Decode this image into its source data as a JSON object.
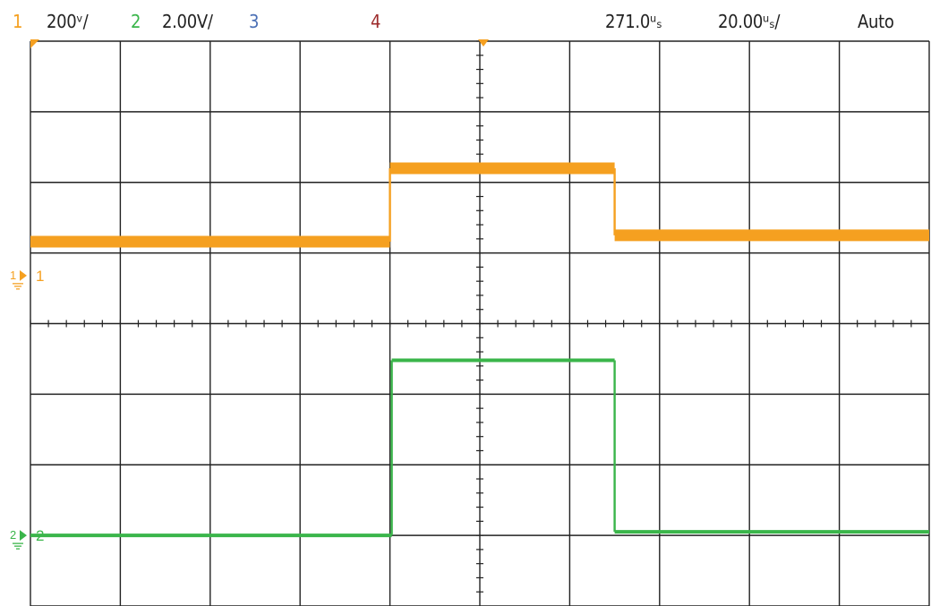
{
  "status_bar": {
    "ch1_num": "1",
    "ch1_scale": "200ᵛ/",
    "ch2_num": "2",
    "ch2_scale": "2.00V/",
    "ch3_num": "3",
    "ch4_num": "4",
    "time_offset": "271.0ᵘₛ",
    "time_div": "20.00ᵘₛ/",
    "trigger_mode": "Auto"
  },
  "colors": {
    "ch1": "#f5a020",
    "ch2": "#3ab54a",
    "ch3": "#4a6fb5",
    "ch4": "#9c2a2a",
    "grid": "#222222",
    "text": "#222222"
  },
  "chart_data": {
    "type": "line",
    "grid": true,
    "x_divisions": 10,
    "y_divisions": 8,
    "xlabel": "",
    "ylabel": "",
    "series": [
      {
        "name": "1",
        "color": "#f5a020",
        "x_div": [
          0,
          4,
          4,
          6.5,
          6.5,
          10
        ],
        "y_div": [
          1.16,
          1.16,
          2.2,
          2.2,
          1.25,
          1.25
        ]
      },
      {
        "name": "2",
        "color": "#3ab54a",
        "x_div": [
          0,
          4.02,
          4.02,
          6.5,
          6.5,
          10
        ],
        "y_div": [
          -3.0,
          -3.0,
          -0.52,
          -0.52,
          -2.95,
          -2.95
        ]
      }
    ],
    "ground_markers": [
      {
        "label": "1",
        "y_div": 0.68
      },
      {
        "label": "2",
        "y_div": -3.0
      }
    ]
  }
}
